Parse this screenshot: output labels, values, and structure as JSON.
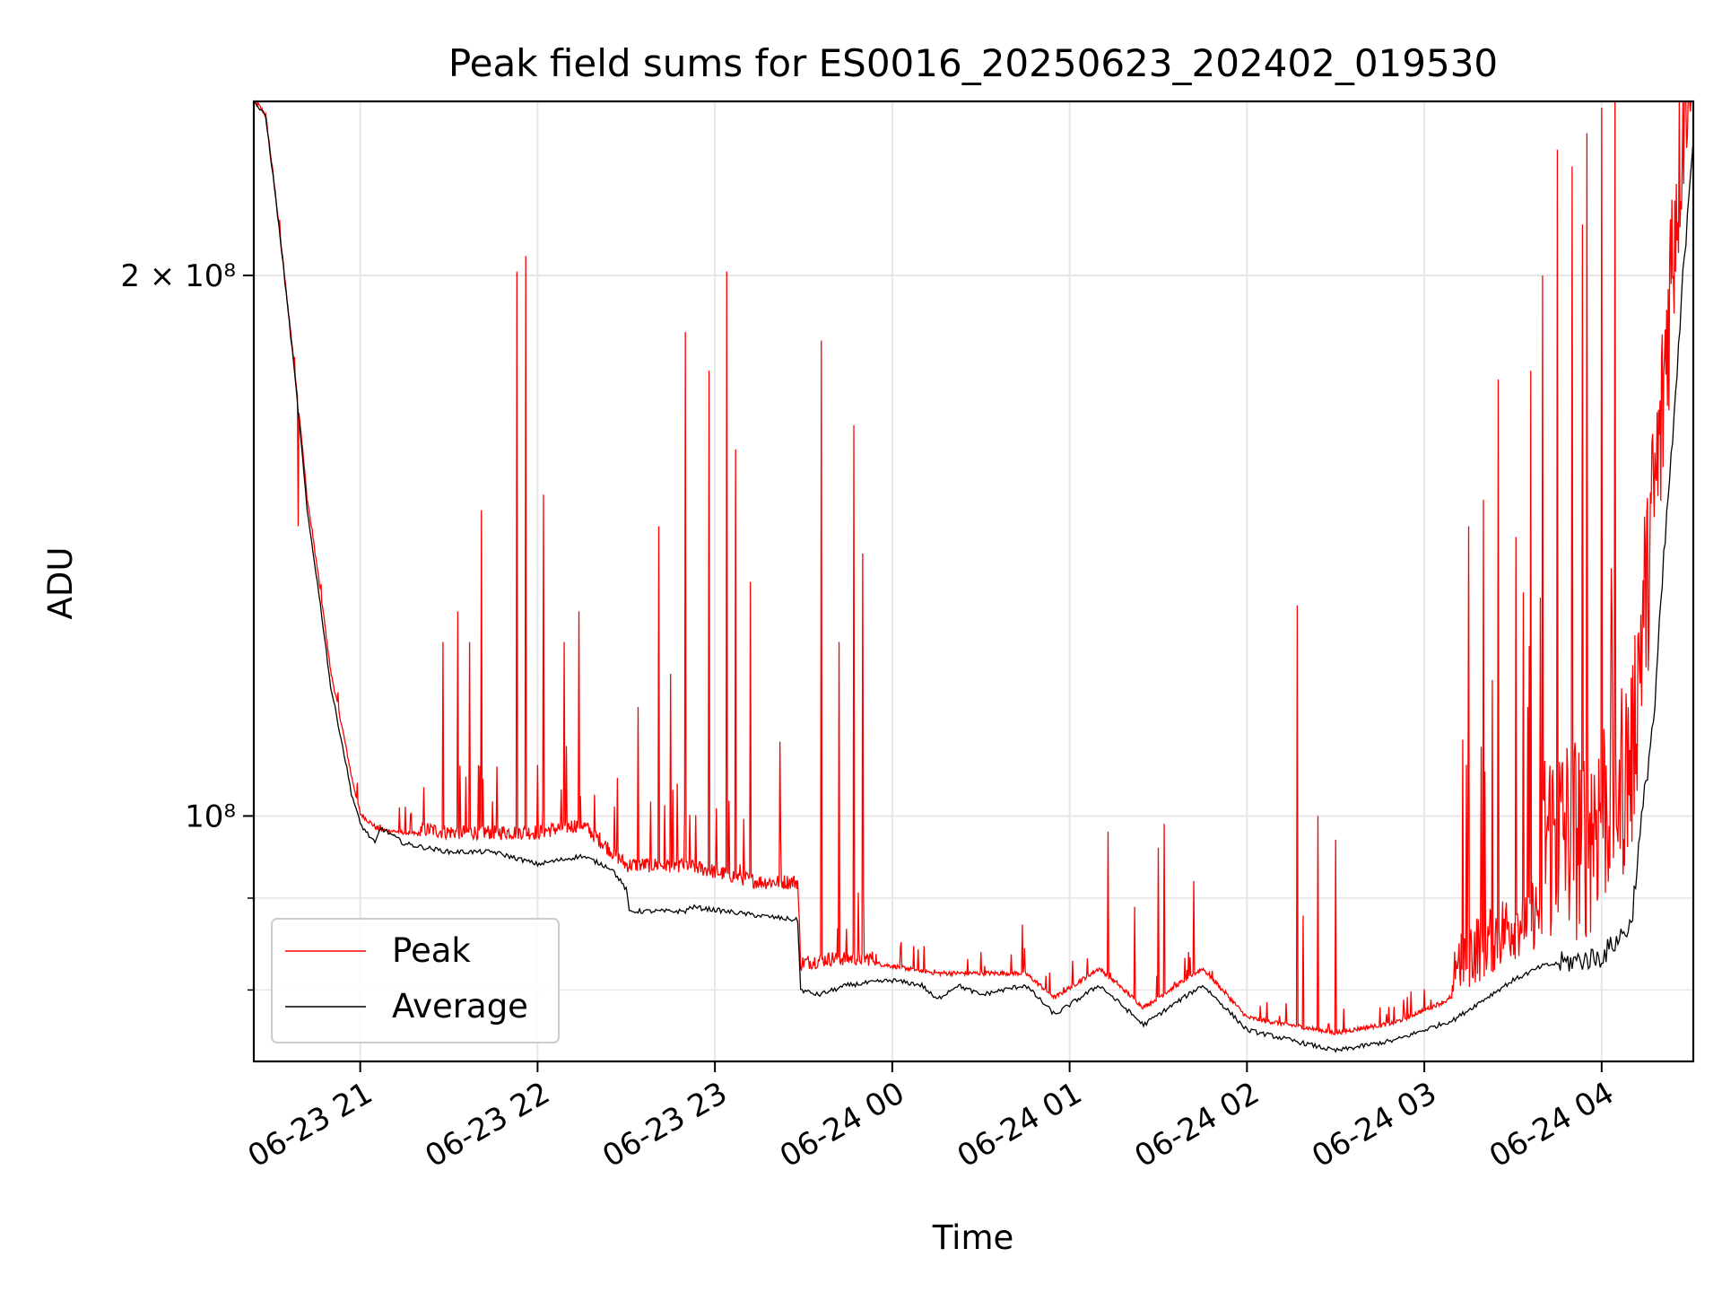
{
  "chart_data": {
    "type": "line",
    "title": "Peak field sums for ES0016_20250623_202402_019530",
    "xlabel": "Time",
    "ylabel": "ADU",
    "yscale": "log",
    "ylim": [
      73000000,
      250000000
    ],
    "xlim": [
      "2025-06-23 20:24",
      "2025-06-24 04:31"
    ],
    "x_ticks": [
      {
        "t": "2025-06-23 21:00",
        "label": "06-23 21"
      },
      {
        "t": "2025-06-23 22:00",
        "label": "06-23 22"
      },
      {
        "t": "2025-06-23 23:00",
        "label": "06-23 23"
      },
      {
        "t": "2025-06-24 00:00",
        "label": "06-24 00"
      },
      {
        "t": "2025-06-24 01:00",
        "label": "06-24 01"
      },
      {
        "t": "2025-06-24 02:00",
        "label": "06-24 02"
      },
      {
        "t": "2025-06-24 03:00",
        "label": "06-24 03"
      },
      {
        "t": "2025-06-24 04:00",
        "label": "06-24 04"
      }
    ],
    "y_ticks": [
      {
        "value": 200000000,
        "label": "2 × 10⁸"
      },
      {
        "value": 100000000,
        "label": "10⁸"
      }
    ],
    "y_minor_ticks": [
      90000000,
      80000000
    ],
    "grid": true,
    "legend_position": "lower-left",
    "series": [
      {
        "name": "Peak",
        "color": "#ff0000",
        "baseline": [
          [
            "2025-06-23 20:24",
            250000000
          ],
          [
            "2025-06-23 20:28",
            245000000
          ],
          [
            "2025-06-23 20:35",
            195000000
          ],
          [
            "2025-06-23 20:42",
            150000000
          ],
          [
            "2025-06-23 20:50",
            120000000
          ],
          [
            "2025-06-23 20:57",
            105000000
          ],
          [
            "2025-06-23 21:00",
            100000000
          ],
          [
            "2025-06-23 21:06",
            98000000
          ],
          [
            "2025-06-23 21:30",
            97000000
          ],
          [
            "2025-06-23 22:00",
            97000000
          ],
          [
            "2025-06-23 22:15",
            98000000
          ],
          [
            "2025-06-23 22:30",
            93000000
          ],
          [
            "2025-06-23 22:50",
            93000000
          ],
          [
            "2025-06-23 23:15",
            91000000
          ],
          [
            "2025-06-23 23:28",
            91000000
          ],
          [
            "2025-06-23 23:29",
            82000000
          ],
          [
            "2025-06-23 23:40",
            82500000
          ],
          [
            "2025-06-23 23:55",
            82500000
          ],
          [
            "2025-06-24 00:15",
            81500000
          ],
          [
            "2025-06-24 00:30",
            81500000
          ],
          [
            "2025-06-24 00:45",
            81500000
          ],
          [
            "2025-06-24 00:55",
            79000000
          ],
          [
            "2025-06-24 01:10",
            82000000
          ],
          [
            "2025-06-24 01:25",
            78000000
          ],
          [
            "2025-06-24 01:45",
            82000000
          ],
          [
            "2025-06-24 02:00",
            77000000
          ],
          [
            "2025-06-24 02:30",
            75500000
          ],
          [
            "2025-06-24 02:50",
            76500000
          ],
          [
            "2025-06-24 03:10",
            79000000
          ],
          [
            "2025-06-24 03:35",
            84000000
          ],
          [
            "2025-06-24 03:55",
            85000000
          ],
          [
            "2025-06-24 04:10",
            93000000
          ],
          [
            "2025-06-24 04:20",
            140000000
          ],
          [
            "2025-06-24 04:31",
            250000000
          ]
        ],
        "spikes": [
          [
            "2025-06-23 20:39",
            145000000
          ],
          [
            "2025-06-23 21:28",
            125000000
          ],
          [
            "2025-06-23 21:33",
            130000000
          ],
          [
            "2025-06-23 21:37",
            125000000
          ],
          [
            "2025-06-23 21:41",
            148000000
          ],
          [
            "2025-06-23 21:53",
            201000000
          ],
          [
            "2025-06-23 21:56",
            205000000
          ],
          [
            "2025-06-23 22:02",
            151000000
          ],
          [
            "2025-06-23 22:09",
            125000000
          ],
          [
            "2025-06-23 22:14",
            130000000
          ],
          [
            "2025-06-23 22:27",
            105000000
          ],
          [
            "2025-06-23 22:34",
            115000000
          ],
          [
            "2025-06-23 22:41",
            145000000
          ],
          [
            "2025-06-23 22:45",
            120000000
          ],
          [
            "2025-06-23 22:50",
            186000000
          ],
          [
            "2025-06-23 22:58",
            177000000
          ],
          [
            "2025-06-23 23:04",
            201000000
          ],
          [
            "2025-06-23 23:07",
            160000000
          ],
          [
            "2025-06-23 23:12",
            135000000
          ],
          [
            "2025-06-23 23:22",
            110000000
          ],
          [
            "2025-06-23 23:36",
            184000000
          ],
          [
            "2025-06-23 23:42",
            125000000
          ],
          [
            "2025-06-23 23:47",
            165000000
          ],
          [
            "2025-06-23 23:50",
            140000000
          ],
          [
            "2025-06-24 00:30",
            84000000
          ],
          [
            "2025-06-24 00:44",
            87000000
          ],
          [
            "2025-06-24 01:13",
            98000000
          ],
          [
            "2025-06-24 01:22",
            89000000
          ],
          [
            "2025-06-24 01:30",
            96000000
          ],
          [
            "2025-06-24 01:32",
            99000000
          ],
          [
            "2025-06-24 01:42",
            92000000
          ],
          [
            "2025-06-24 02:17",
            131000000
          ],
          [
            "2025-06-24 02:19",
            88000000
          ],
          [
            "2025-06-24 02:24",
            100000000
          ],
          [
            "2025-06-24 02:30",
            97000000
          ],
          [
            "2025-06-24 03:15",
            145000000
          ],
          [
            "2025-06-24 03:20",
            150000000
          ],
          [
            "2025-06-24 03:25",
            175000000
          ],
          [
            "2025-06-24 03:31",
            143000000
          ],
          [
            "2025-06-24 03:36",
            177000000
          ],
          [
            "2025-06-24 03:40",
            200000000
          ],
          [
            "2025-06-24 03:45",
            235000000
          ],
          [
            "2025-06-24 03:50",
            230000000
          ],
          [
            "2025-06-24 03:55",
            240000000
          ],
          [
            "2025-06-24 04:00",
            248000000
          ]
        ]
      },
      {
        "name": "Average",
        "color": "#000000",
        "points": [
          [
            "2025-06-23 20:24",
            250000000
          ],
          [
            "2025-06-23 20:28",
            245000000
          ],
          [
            "2025-06-23 20:35",
            195000000
          ],
          [
            "2025-06-23 20:42",
            148000000
          ],
          [
            "2025-06-23 20:50",
            118000000
          ],
          [
            "2025-06-23 20:57",
            103000000
          ],
          [
            "2025-06-23 21:00",
            99000000
          ],
          [
            "2025-06-23 21:05",
            96500000
          ],
          [
            "2025-06-23 21:07",
            98500000
          ],
          [
            "2025-06-23 21:15",
            96500000
          ],
          [
            "2025-06-23 21:30",
            95500000
          ],
          [
            "2025-06-23 21:45",
            95500000
          ],
          [
            "2025-06-23 22:00",
            94000000
          ],
          [
            "2025-06-23 22:15",
            95000000
          ],
          [
            "2025-06-23 22:25",
            93500000
          ],
          [
            "2025-06-23 22:30",
            91000000
          ],
          [
            "2025-06-23 22:31",
            88500000
          ],
          [
            "2025-06-23 22:50",
            88500000
          ],
          [
            "2025-06-23 22:52",
            89000000
          ],
          [
            "2025-06-23 23:15",
            88000000
          ],
          [
            "2025-06-23 23:28",
            87500000
          ],
          [
            "2025-06-23 23:29",
            80000000
          ],
          [
            "2025-06-23 23:35",
            79500000
          ],
          [
            "2025-06-23 23:45",
            80500000
          ],
          [
            "2025-06-23 24:00",
            81000000
          ],
          [
            "2025-06-24 00:10",
            80500000
          ],
          [
            "2025-06-24 00:15",
            79000000
          ],
          [
            "2025-06-24 00:22",
            80500000
          ],
          [
            "2025-06-24 00:30",
            79500000
          ],
          [
            "2025-06-24 00:45",
            80500000
          ],
          [
            "2025-06-24 00:55",
            77500000
          ],
          [
            "2025-06-24 01:10",
            80500000
          ],
          [
            "2025-06-24 01:25",
            76500000
          ],
          [
            "2025-06-24 01:45",
            80500000
          ],
          [
            "2025-06-24 02:00",
            76000000
          ],
          [
            "2025-06-24 02:30",
            74000000
          ],
          [
            "2025-06-24 02:50",
            75000000
          ],
          [
            "2025-06-24 03:10",
            77000000
          ],
          [
            "2025-06-24 03:30",
            81000000
          ],
          [
            "2025-06-24 03:40",
            82500000
          ],
          [
            "2025-06-24 04:00",
            83500000
          ],
          [
            "2025-06-24 04:10",
            87000000
          ],
          [
            "2025-06-24 04:18",
            115000000
          ],
          [
            "2025-06-24 04:25",
            170000000
          ],
          [
            "2025-06-24 04:31",
            240000000
          ]
        ]
      }
    ]
  }
}
